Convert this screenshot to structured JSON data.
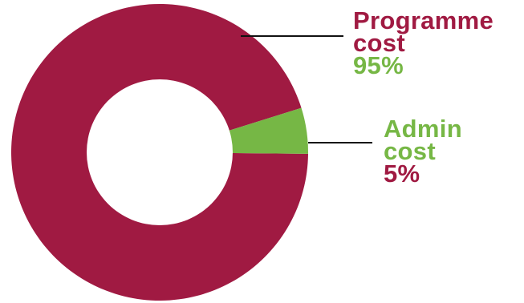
{
  "colors": {
    "programme": "#a01a42",
    "admin": "#76b745",
    "background": "#ffffff"
  },
  "chart_data": {
    "type": "pie",
    "donut": true,
    "slices": [
      {
        "label_line1": "Programme",
        "label_line2": "cost",
        "value": 95,
        "value_label": "95%",
        "color": "#a01a42",
        "text_color": "#a01a42",
        "value_color": "#76b745"
      },
      {
        "label_line1": "Admin",
        "label_line2": "cost",
        "value": 5,
        "value_label": "5%",
        "color": "#76b745",
        "text_color": "#76b745",
        "value_color": "#a01a42"
      }
    ]
  }
}
